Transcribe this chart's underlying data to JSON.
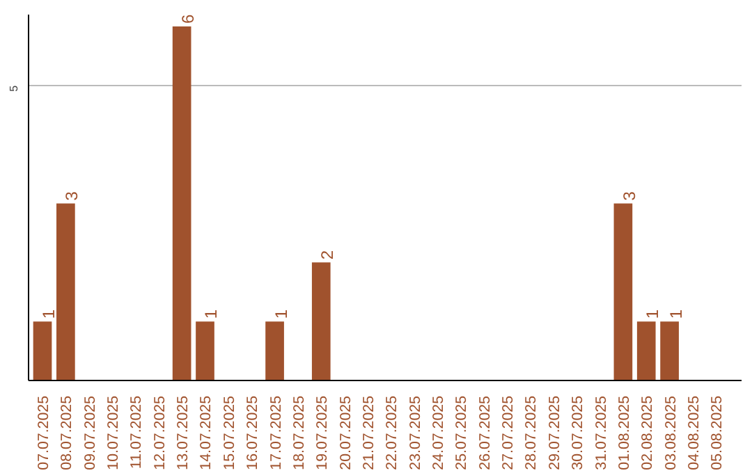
{
  "chart_data": {
    "type": "bar",
    "categories": [
      "07.07.2025",
      "08.07.2025",
      "09.07.2025",
      "10.07.2025",
      "11.07.2025",
      "12.07.2025",
      "13.07.2025",
      "14.07.2025",
      "15.07.2025",
      "16.07.2025",
      "17.07.2025",
      "18.07.2025",
      "19.07.2025",
      "20.07.2025",
      "21.07.2025",
      "22.07.2025",
      "23.07.2025",
      "24.07.2025",
      "25.07.2025",
      "26.07.2025",
      "27.07.2025",
      "28.07.2025",
      "29.07.2025",
      "30.07.2025",
      "31.07.2025",
      "01.08.2025",
      "02.08.2025",
      "03.08.2025",
      "04.08.2025",
      "05.08.2025"
    ],
    "values": [
      1,
      3,
      0,
      0,
      0,
      0,
      6,
      1,
      0,
      0,
      1,
      0,
      2,
      0,
      0,
      0,
      0,
      0,
      0,
      0,
      0,
      0,
      0,
      0,
      0,
      3,
      1,
      1,
      0,
      0
    ],
    "value_labels": [
      "1",
      "3",
      null,
      null,
      null,
      null,
      "6",
      "1",
      null,
      null,
      "1",
      null,
      "2",
      null,
      null,
      null,
      null,
      null,
      null,
      null,
      null,
      null,
      null,
      null,
      null,
      "3",
      "1",
      "1",
      null,
      null
    ],
    "color": "#a0522d",
    "ylim": [
      0,
      6.2
    ],
    "yticks": [
      5
    ],
    "grid": "y"
  }
}
